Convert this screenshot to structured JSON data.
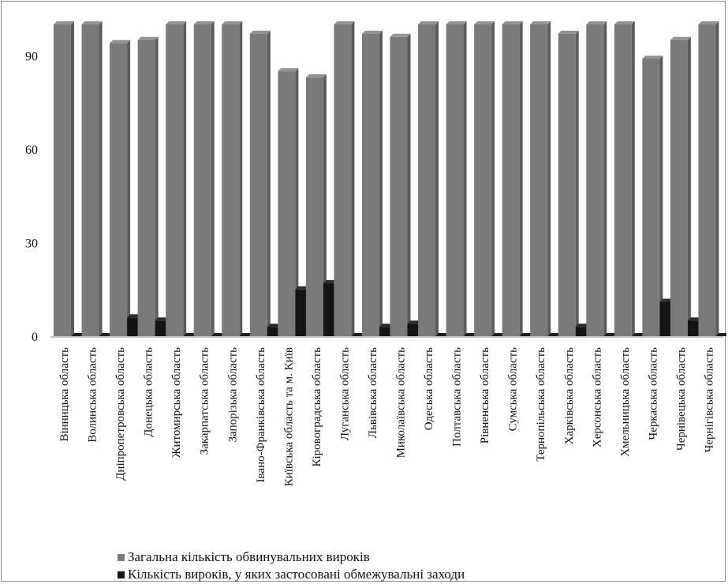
{
  "chart_data": {
    "type": "bar",
    "categories": [
      "Вінницька область",
      "Волинська область",
      "Дніпропетровська область",
      "Донецька область",
      "Житомирська область",
      "Закарпатська область",
      "Запорізька область",
      "Івано-Франківська область",
      "Київська область та м. Київ",
      "Кіровоградська область",
      "Луганська область",
      "Львівська область",
      "Миколаївська область",
      "Одеська область",
      "Полтавська область",
      "Рівненська область",
      "Сумська область",
      "Тернопільська область",
      "Харківська область",
      "Херсонська область",
      "Хмельницька область",
      "Черкаська область",
      "Чернівецька область",
      "Чернігівська область"
    ],
    "series": [
      {
        "name": "Загальна кількість обвинувальних вироків",
        "color": "#7a7a7a",
        "values": [
          100,
          100,
          94,
          95,
          100,
          100,
          100,
          97,
          85,
          83,
          100,
          97,
          96,
          100,
          100,
          100,
          100,
          100,
          97,
          100,
          100,
          89,
          95,
          100
        ]
      },
      {
        "name": "Кількість вироків, у яких застосовані обмежувальні заходи",
        "color": "#141414",
        "values": [
          0,
          0,
          6,
          5,
          0,
          0,
          0,
          3,
          15,
          17,
          0,
          3,
          4,
          0,
          0,
          0,
          0,
          0,
          3,
          0,
          0,
          11,
          5,
          0
        ]
      }
    ],
    "yticks": [
      "0",
      "30",
      "60",
      "90"
    ],
    "ylim": [
      0,
      100
    ],
    "title": "",
    "xlabel": "",
    "ylabel": "",
    "grid": false,
    "legend_position": "bottom-left"
  }
}
